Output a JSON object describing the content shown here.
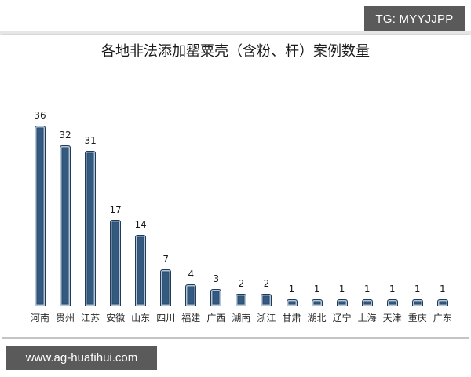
{
  "watermarks": {
    "top_right": "TG: MYYJJPP",
    "bottom_left": "www.ag-huatihui.com"
  },
  "colors": {
    "bar_fill": "#355a80",
    "bar_outline": "#1f3a5a",
    "bar_highlight": "#b4c6d8",
    "watermark_bg": "#5a5a5a"
  },
  "chart_data": {
    "type": "bar",
    "title": "各地非法添加罂粟壳（含粉、杆）案例数量",
    "xlabel": "",
    "ylabel": "",
    "grid": false,
    "legend": null,
    "data_labels": true,
    "ylim": [
      0,
      36
    ],
    "categories": [
      "河南",
      "贵州",
      "江苏",
      "安徽",
      "山东",
      "四川",
      "福建",
      "广西",
      "湖南",
      "浙江",
      "甘肃",
      "湖北",
      "辽宁",
      "上海",
      "天津",
      "重庆",
      "广东"
    ],
    "values": [
      36,
      32,
      31,
      17,
      14,
      7,
      4,
      3,
      2,
      2,
      1,
      1,
      1,
      1,
      1,
      1,
      1
    ]
  }
}
